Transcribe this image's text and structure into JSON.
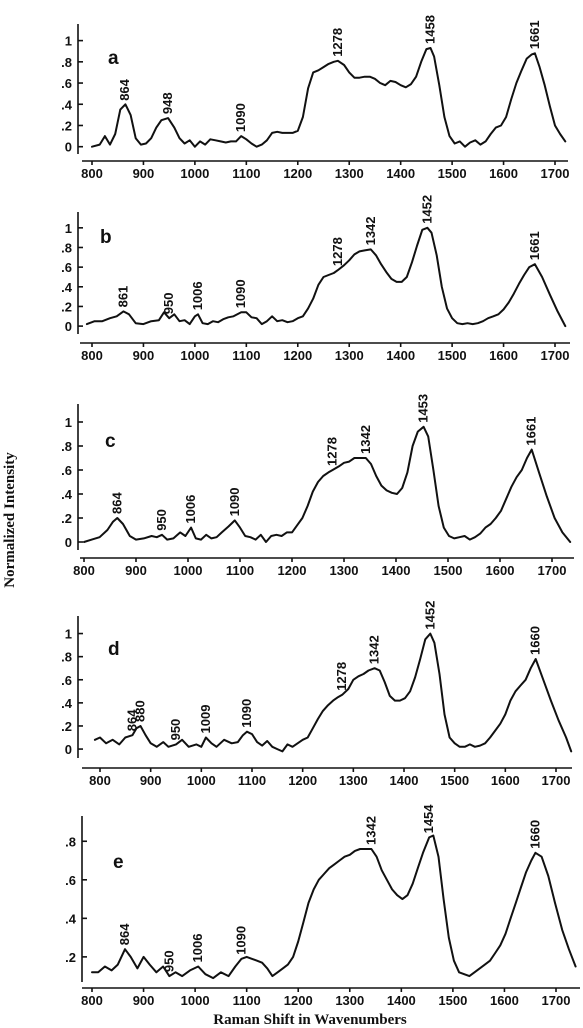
{
  "figure": {
    "ylabel": "Normalized Intensity",
    "xlabel": "Raman Shift in Wavenumbers"
  },
  "chart_data": [
    {
      "type": "line",
      "panel_label": "a",
      "xlim": [
        790,
        1730
      ],
      "ylim": [
        -0.05,
        1.1
      ],
      "xticks": [
        "800",
        "900",
        "1000",
        "1100",
        "1200",
        "1300",
        "1400",
        "1500",
        "1600",
        "1700"
      ],
      "yticks": [
        "1",
        ".8",
        ".6",
        ".4",
        ".2",
        "0"
      ],
      "ytick_values": [
        1,
        0.8,
        0.6,
        0.4,
        0.2,
        0
      ],
      "peak_labels": [
        "864",
        "948",
        "1090",
        "1278",
        "1458",
        "1661"
      ],
      "peak_x": [
        864,
        948,
        1090,
        1278,
        1458,
        1661
      ],
      "x": [
        800,
        815,
        825,
        835,
        845,
        855,
        865,
        875,
        885,
        895,
        905,
        915,
        925,
        935,
        948,
        960,
        970,
        980,
        990,
        1000,
        1010,
        1020,
        1030,
        1040,
        1050,
        1060,
        1070,
        1080,
        1090,
        1100,
        1110,
        1120,
        1130,
        1140,
        1150,
        1160,
        1170,
        1180,
        1190,
        1200,
        1210,
        1220,
        1230,
        1240,
        1250,
        1260,
        1270,
        1278,
        1290,
        1300,
        1310,
        1320,
        1330,
        1340,
        1350,
        1360,
        1370,
        1380,
        1390,
        1400,
        1410,
        1420,
        1430,
        1440,
        1450,
        1458,
        1465,
        1475,
        1485,
        1495,
        1505,
        1515,
        1525,
        1535,
        1545,
        1555,
        1565,
        1575,
        1585,
        1595,
        1605,
        1615,
        1625,
        1635,
        1645,
        1655,
        1661,
        1670,
        1680,
        1690,
        1700,
        1710,
        1720
      ],
      "y": [
        0,
        0.02,
        0.1,
        0.02,
        0.12,
        0.35,
        0.4,
        0.3,
        0.08,
        0.02,
        0.03,
        0.08,
        0.18,
        0.25,
        0.27,
        0.18,
        0.08,
        0.03,
        0.06,
        0,
        0.05,
        0.02,
        0.07,
        0.06,
        0.05,
        0.04,
        0.05,
        0.05,
        0.1,
        0.07,
        0.03,
        0,
        0.02,
        0.06,
        0.13,
        0.14,
        0.13,
        0.13,
        0.13,
        0.15,
        0.28,
        0.55,
        0.7,
        0.72,
        0.75,
        0.78,
        0.8,
        0.81,
        0.77,
        0.7,
        0.65,
        0.65,
        0.66,
        0.66,
        0.64,
        0.6,
        0.58,
        0.62,
        0.61,
        0.58,
        0.56,
        0.59,
        0.66,
        0.8,
        0.92,
        0.93,
        0.85,
        0.58,
        0.28,
        0.1,
        0.03,
        0.05,
        0,
        0.04,
        0.06,
        0.02,
        0.05,
        0.12,
        0.18,
        0.2,
        0.28,
        0.45,
        0.6,
        0.72,
        0.83,
        0.87,
        0.88,
        0.75,
        0.58,
        0.38,
        0.2,
        0.12,
        0.05
      ]
    },
    {
      "type": "line",
      "panel_label": "b",
      "xlim": [
        790,
        1725
      ],
      "ylim": [
        -0.06,
        1.1
      ],
      "xticks": [
        "800",
        "900",
        "1000",
        "1100",
        "1200",
        "1300",
        "1400",
        "1500",
        "1600",
        "1700"
      ],
      "yticks": [
        "1",
        ".8",
        ".6",
        ".4",
        ".2",
        "0"
      ],
      "ytick_values": [
        1,
        0.8,
        0.6,
        0.4,
        0.2,
        0
      ],
      "peak_labels": [
        "861",
        "950",
        "1006",
        "1090",
        "1278",
        "1342",
        "1452",
        "1661"
      ],
      "peak_x": [
        861,
        950,
        1006,
        1090,
        1278,
        1342,
        1452,
        1661
      ],
      "x": [
        790,
        805,
        820,
        835,
        848,
        861,
        872,
        885,
        900,
        915,
        930,
        940,
        950,
        960,
        970,
        980,
        990,
        1000,
        1006,
        1015,
        1025,
        1035,
        1045,
        1055,
        1065,
        1075,
        1090,
        1100,
        1110,
        1120,
        1130,
        1140,
        1150,
        1160,
        1170,
        1180,
        1190,
        1200,
        1210,
        1220,
        1230,
        1240,
        1250,
        1260,
        1270,
        1278,
        1290,
        1300,
        1310,
        1320,
        1330,
        1342,
        1352,
        1362,
        1372,
        1382,
        1392,
        1402,
        1412,
        1422,
        1432,
        1442,
        1452,
        1460,
        1470,
        1480,
        1490,
        1500,
        1510,
        1520,
        1530,
        1540,
        1550,
        1560,
        1570,
        1580,
        1590,
        1600,
        1610,
        1620,
        1630,
        1640,
        1650,
        1661,
        1675,
        1690,
        1705,
        1720
      ],
      "y": [
        0.02,
        0.05,
        0.05,
        0.08,
        0.1,
        0.15,
        0.12,
        0.03,
        0.02,
        0.05,
        0.06,
        0.14,
        0.08,
        0.12,
        0.05,
        0.06,
        0.02,
        0.1,
        0.12,
        0.03,
        0.02,
        0.05,
        0.04,
        0.07,
        0.09,
        0.1,
        0.14,
        0.14,
        0.09,
        0.08,
        0.02,
        0.05,
        0.1,
        0.05,
        0.06,
        0.04,
        0.05,
        0.08,
        0.1,
        0.18,
        0.28,
        0.42,
        0.5,
        0.52,
        0.54,
        0.57,
        0.62,
        0.67,
        0.73,
        0.76,
        0.77,
        0.78,
        0.72,
        0.63,
        0.55,
        0.48,
        0.45,
        0.45,
        0.5,
        0.65,
        0.82,
        0.98,
        1.0,
        0.95,
        0.72,
        0.4,
        0.18,
        0.08,
        0.03,
        0.02,
        0.03,
        0.02,
        0.03,
        0.05,
        0.08,
        0.1,
        0.12,
        0.17,
        0.24,
        0.33,
        0.43,
        0.52,
        0.6,
        0.63,
        0.5,
        0.32,
        0.15,
        0.0
      ]
    },
    {
      "type": "line",
      "panel_label": "c",
      "xlim": [
        790,
        1740
      ],
      "ylim": [
        -0.05,
        1.1
      ],
      "xticks": [
        "800",
        "900",
        "1000",
        "1100",
        "1200",
        "1300",
        "1400",
        "1500",
        "1600",
        "1700"
      ],
      "yticks": [
        "1",
        ".8",
        ".6",
        ".4",
        ".2",
        "0"
      ],
      "ytick_values": [
        1,
        0.8,
        0.6,
        0.4,
        0.2,
        0
      ],
      "peak_labels": [
        "864",
        "950",
        "1006",
        "1090",
        "1278",
        "1342",
        "1453",
        "1661"
      ],
      "peak_x": [
        864,
        950,
        1006,
        1090,
        1278,
        1342,
        1453,
        1661
      ],
      "x": [
        800,
        815,
        830,
        845,
        856,
        864,
        875,
        888,
        900,
        915,
        930,
        940,
        950,
        960,
        972,
        985,
        995,
        1006,
        1015,
        1025,
        1035,
        1045,
        1055,
        1065,
        1078,
        1090,
        1100,
        1110,
        1120,
        1130,
        1140,
        1150,
        1160,
        1170,
        1180,
        1190,
        1200,
        1210,
        1220,
        1230,
        1240,
        1250,
        1260,
        1270,
        1278,
        1290,
        1300,
        1310,
        1320,
        1330,
        1342,
        1352,
        1362,
        1372,
        1382,
        1392,
        1402,
        1412,
        1422,
        1432,
        1442,
        1453,
        1462,
        1472,
        1482,
        1492,
        1502,
        1512,
        1522,
        1532,
        1542,
        1552,
        1562,
        1572,
        1582,
        1592,
        1602,
        1612,
        1622,
        1632,
        1642,
        1652,
        1661,
        1675,
        1690,
        1705,
        1720,
        1735
      ],
      "y": [
        0,
        0.02,
        0.04,
        0.1,
        0.17,
        0.2,
        0.15,
        0.05,
        0.02,
        0.03,
        0.05,
        0.04,
        0.06,
        0.02,
        0.03,
        0.08,
        0.05,
        0.12,
        0.03,
        0.02,
        0.06,
        0.03,
        0.04,
        0.08,
        0.13,
        0.18,
        0.12,
        0.05,
        0.04,
        0.02,
        0.06,
        0.0,
        0.05,
        0.06,
        0.05,
        0.08,
        0.08,
        0.14,
        0.2,
        0.3,
        0.42,
        0.5,
        0.55,
        0.58,
        0.6,
        0.63,
        0.66,
        0.67,
        0.7,
        0.7,
        0.7,
        0.65,
        0.55,
        0.47,
        0.43,
        0.41,
        0.4,
        0.45,
        0.58,
        0.8,
        0.92,
        0.96,
        0.88,
        0.6,
        0.3,
        0.12,
        0.05,
        0.03,
        0.04,
        0.05,
        0.02,
        0.04,
        0.07,
        0.12,
        0.15,
        0.2,
        0.26,
        0.36,
        0.46,
        0.54,
        0.6,
        0.7,
        0.77,
        0.58,
        0.38,
        0.2,
        0.08,
        0.0
      ]
    },
    {
      "type": "line",
      "panel_label": "d",
      "xlim": [
        790,
        1735
      ],
      "ylim": [
        -0.06,
        1.1
      ],
      "xticks": [
        "800",
        "900",
        "1000",
        "1100",
        "1200",
        "1300",
        "1400",
        "1500",
        "1600",
        "1700"
      ],
      "yticks": [
        "1",
        ".8",
        ".6",
        ".4",
        ".2",
        "0"
      ],
      "ytick_values": [
        1,
        0.8,
        0.6,
        0.4,
        0.2,
        0
      ],
      "peak_labels": [
        "864",
        "880",
        "950",
        "1009",
        "1090",
        "1278",
        "1342",
        "1452",
        "1660"
      ],
      "peak_x": [
        864,
        880,
        950,
        1009,
        1090,
        1278,
        1342,
        1452,
        1660
      ],
      "x": [
        790,
        800,
        812,
        825,
        838,
        850,
        864,
        872,
        880,
        890,
        900,
        912,
        925,
        935,
        950,
        962,
        975,
        990,
        1000,
        1009,
        1020,
        1030,
        1045,
        1060,
        1072,
        1082,
        1090,
        1100,
        1110,
        1120,
        1130,
        1140,
        1150,
        1160,
        1170,
        1180,
        1190,
        1200,
        1210,
        1220,
        1230,
        1240,
        1250,
        1260,
        1270,
        1278,
        1290,
        1300,
        1310,
        1320,
        1330,
        1342,
        1352,
        1362,
        1372,
        1382,
        1392,
        1402,
        1412,
        1422,
        1432,
        1442,
        1452,
        1460,
        1470,
        1480,
        1490,
        1500,
        1510,
        1520,
        1530,
        1540,
        1550,
        1560,
        1570,
        1580,
        1590,
        1600,
        1610,
        1620,
        1630,
        1640,
        1650,
        1660,
        1675,
        1690,
        1705,
        1720,
        1730
      ],
      "y": [
        0.08,
        0.1,
        0.05,
        0.08,
        0.04,
        0.1,
        0.12,
        0.18,
        0.2,
        0.12,
        0.05,
        0.02,
        0.06,
        0.02,
        0.04,
        0.08,
        0.02,
        0.04,
        0.02,
        0.1,
        0.05,
        0.02,
        0.08,
        0.05,
        0.06,
        0.12,
        0.15,
        0.13,
        0.06,
        0.03,
        0.07,
        0.02,
        0.0,
        -0.02,
        0.04,
        0.02,
        0.05,
        0.08,
        0.1,
        0.18,
        0.26,
        0.33,
        0.38,
        0.42,
        0.45,
        0.47,
        0.52,
        0.6,
        0.63,
        0.65,
        0.68,
        0.7,
        0.68,
        0.58,
        0.46,
        0.42,
        0.42,
        0.44,
        0.5,
        0.62,
        0.78,
        0.95,
        1.0,
        0.92,
        0.65,
        0.3,
        0.1,
        0.05,
        0.02,
        0.02,
        0.04,
        0.02,
        0.03,
        0.05,
        0.1,
        0.16,
        0.22,
        0.3,
        0.42,
        0.5,
        0.55,
        0.6,
        0.7,
        0.78,
        0.6,
        0.42,
        0.25,
        0.1,
        -0.02
      ]
    },
    {
      "type": "line",
      "panel_label": "e",
      "xlim": [
        790,
        1740
      ],
      "ylim": [
        0.08,
        0.9
      ],
      "xticks": [
        "800",
        "900",
        "1000",
        "1100",
        "1200",
        "1300",
        "1400",
        "1500",
        "1600",
        "1700"
      ],
      "yticks": [
        ".8",
        ".6",
        ".4",
        ".2"
      ],
      "ytick_values": [
        0.8,
        0.6,
        0.4,
        0.2
      ],
      "peak_labels": [
        "864",
        "950",
        "1006",
        "1090",
        "1342",
        "1454",
        "1660"
      ],
      "peak_x": [
        864,
        950,
        1006,
        1090,
        1342,
        1454,
        1660
      ],
      "x": [
        800,
        812,
        825,
        838,
        850,
        864,
        875,
        888,
        900,
        912,
        925,
        938,
        950,
        962,
        975,
        990,
        1006,
        1020,
        1035,
        1050,
        1065,
        1078,
        1090,
        1100,
        1110,
        1120,
        1130,
        1140,
        1150,
        1160,
        1170,
        1180,
        1190,
        1200,
        1210,
        1220,
        1230,
        1240,
        1250,
        1260,
        1270,
        1280,
        1290,
        1300,
        1310,
        1320,
        1330,
        1342,
        1352,
        1362,
        1372,
        1382,
        1392,
        1402,
        1412,
        1422,
        1432,
        1442,
        1454,
        1462,
        1472,
        1482,
        1492,
        1502,
        1512,
        1522,
        1532,
        1542,
        1552,
        1562,
        1572,
        1582,
        1592,
        1602,
        1612,
        1622,
        1632,
        1642,
        1652,
        1660,
        1672,
        1685,
        1698,
        1712,
        1725,
        1738
      ],
      "y": [
        0.12,
        0.12,
        0.15,
        0.13,
        0.16,
        0.24,
        0.2,
        0.14,
        0.2,
        0.16,
        0.12,
        0.15,
        0.1,
        0.12,
        0.1,
        0.13,
        0.15,
        0.11,
        0.09,
        0.12,
        0.1,
        0.15,
        0.19,
        0.2,
        0.19,
        0.18,
        0.17,
        0.14,
        0.1,
        0.12,
        0.14,
        0.16,
        0.2,
        0.28,
        0.38,
        0.48,
        0.55,
        0.6,
        0.63,
        0.66,
        0.68,
        0.7,
        0.72,
        0.73,
        0.75,
        0.76,
        0.76,
        0.76,
        0.72,
        0.65,
        0.6,
        0.55,
        0.52,
        0.5,
        0.52,
        0.58,
        0.66,
        0.74,
        0.82,
        0.83,
        0.72,
        0.5,
        0.3,
        0.18,
        0.12,
        0.11,
        0.1,
        0.12,
        0.14,
        0.16,
        0.18,
        0.22,
        0.26,
        0.32,
        0.4,
        0.48,
        0.56,
        0.64,
        0.7,
        0.74,
        0.72,
        0.62,
        0.48,
        0.34,
        0.24,
        0.15
      ]
    }
  ]
}
